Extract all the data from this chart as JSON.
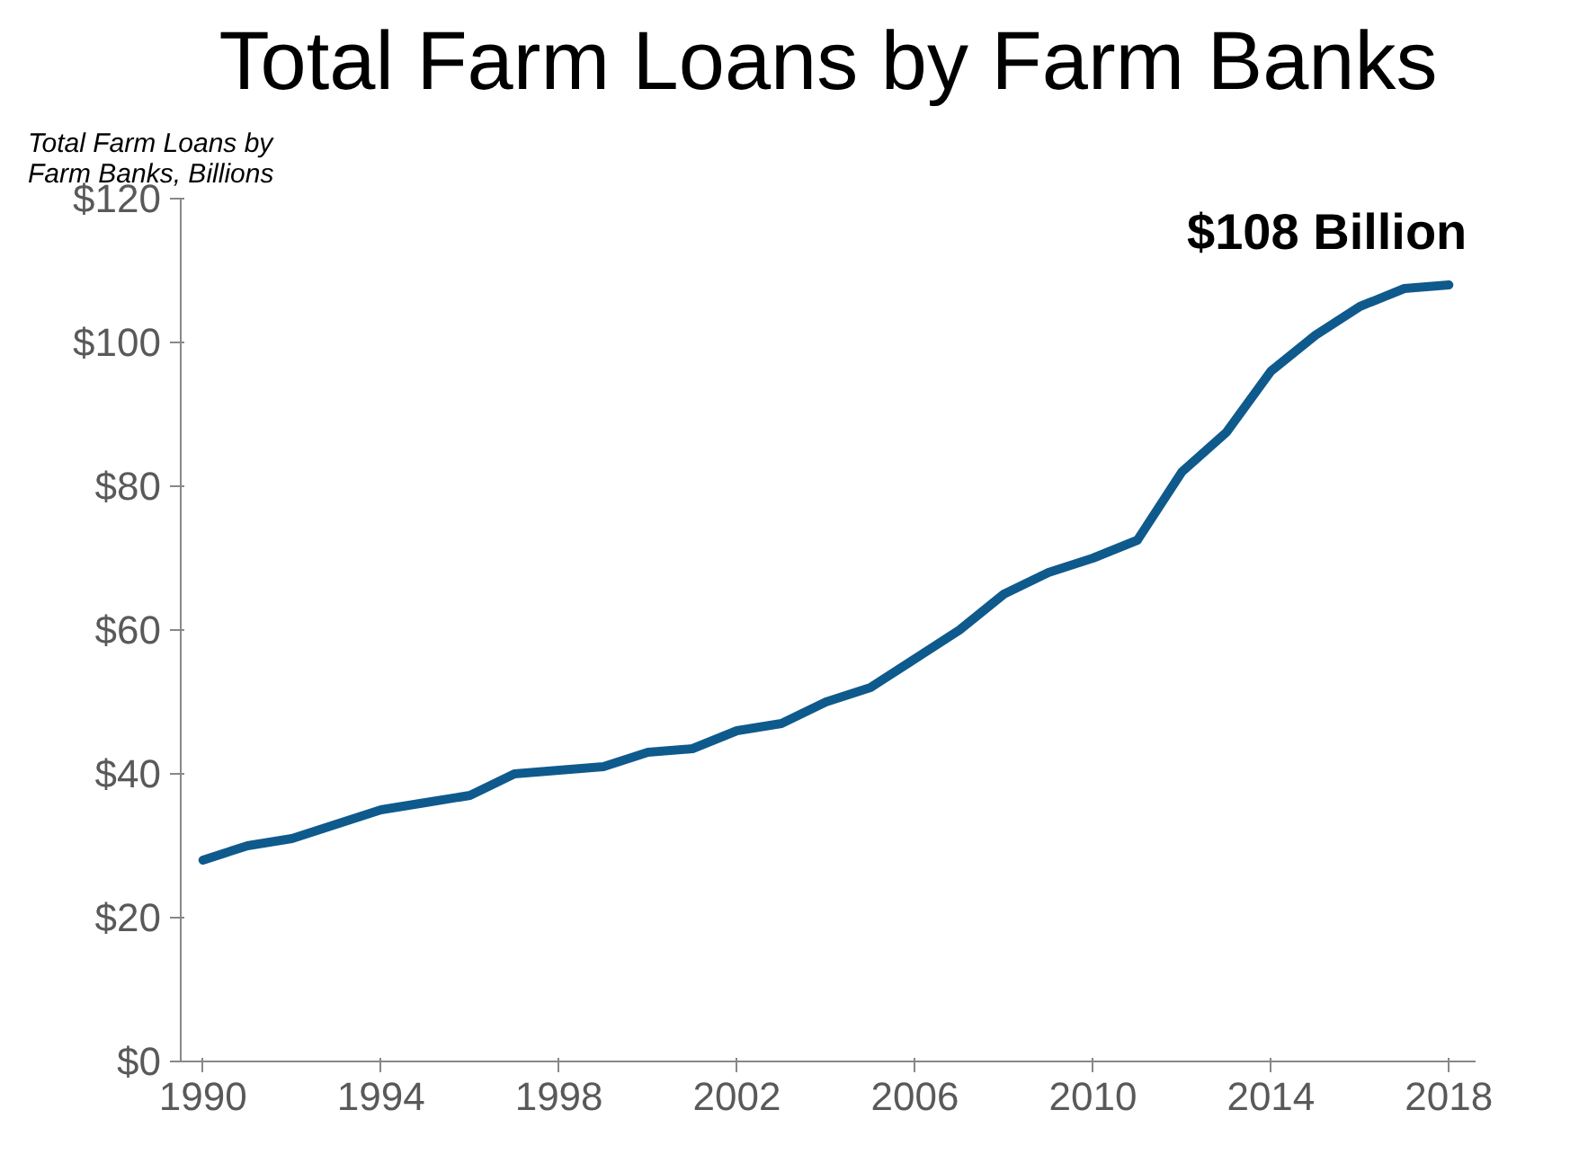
{
  "chart_data": {
    "type": "line",
    "title": "Total Farm Loans by Farm Banks",
    "ylabel": "Total Farm Loans by\nFarm Banks, Billions",
    "x": [
      1990,
      1991,
      1992,
      1993,
      1994,
      1995,
      1996,
      1997,
      1998,
      1999,
      2000,
      2001,
      2002,
      2003,
      2004,
      2005,
      2006,
      2007,
      2008,
      2009,
      2010,
      2011,
      2012,
      2013,
      2014,
      2015,
      2016,
      2017,
      2018
    ],
    "series": [
      {
        "color": "#0f5a8c",
        "values": [
          28,
          30,
          31,
          33,
          35,
          36,
          37,
          40,
          40.5,
          41,
          43,
          43.5,
          46,
          47,
          50,
          52,
          56,
          60,
          65,
          68,
          70,
          72.5,
          82,
          87.5,
          96,
          101,
          105,
          107.5,
          108
        ]
      }
    ],
    "xlim": [
      1989.5,
      2018.6
    ],
    "xticks": [
      1990,
      1994,
      1998,
      2002,
      2006,
      2010,
      2014,
      2018
    ],
    "ylim": [
      0,
      120
    ],
    "yticks": [
      {
        "value": 0,
        "label": "$0"
      },
      {
        "value": 20,
        "label": "$20"
      },
      {
        "value": 40,
        "label": "$40"
      },
      {
        "value": 60,
        "label": "$60"
      },
      {
        "value": 80,
        "label": "$80"
      },
      {
        "value": 100,
        "label": "$100"
      },
      {
        "value": 120,
        "label": "$120"
      }
    ],
    "annotations": [
      {
        "text": "$108 Billion",
        "x": 2018,
        "y": 108
      }
    ],
    "grid": false,
    "marker": "none",
    "line_style": "solid"
  }
}
